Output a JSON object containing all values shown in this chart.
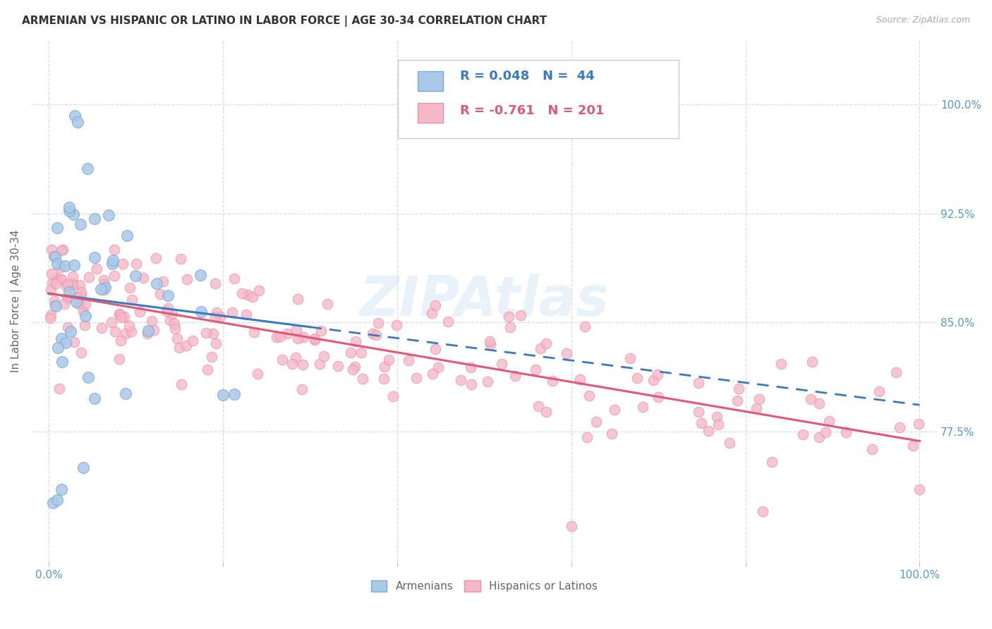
{
  "title": "ARMENIAN VS HISPANIC OR LATINO IN LABOR FORCE | AGE 30-34 CORRELATION CHART",
  "source": "Source: ZipAtlas.com",
  "ylabel": "In Labor Force | Age 30-34",
  "ytick_labels": [
    "77.5%",
    "85.0%",
    "92.5%",
    "100.0%"
  ],
  "ytick_values": [
    0.775,
    0.85,
    0.925,
    1.0
  ],
  "xlim": [
    -0.02,
    1.02
  ],
  "ylim": [
    0.685,
    1.045
  ],
  "armenian_color": "#aac8e8",
  "armenian_edge_color": "#78aad4",
  "hispanic_color": "#f5b8c8",
  "hispanic_edge_color": "#e890a8",
  "armenian_line_color": "#3a7abf",
  "hispanic_line_color": "#e05878",
  "R_armenian": 0.048,
  "N_armenian": 44,
  "R_hispanic": -0.761,
  "N_hispanic": 201,
  "watermark": "ZIPAtlas",
  "title_color": "#333333",
  "axis_label_color": "#5599cc",
  "grid_color": "#d0d8e8",
  "background_color": "#ffffff",
  "legend_text_color": "#3a7abf",
  "legend_r_color_arm": "#3a7abf",
  "legend_r_color_his": "#e05878"
}
